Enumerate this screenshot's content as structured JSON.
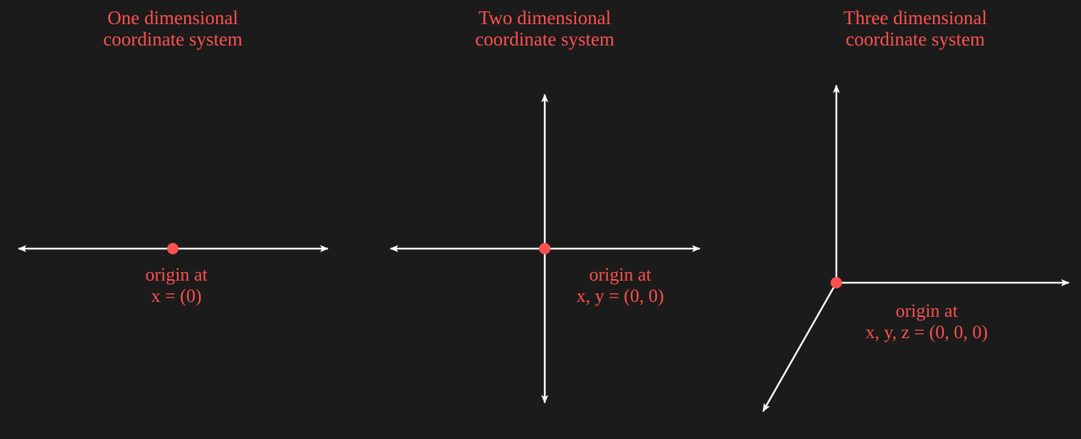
{
  "colors": {
    "background": "#1b1b1b",
    "accent": "#ff5050",
    "axis": "#ffffff"
  },
  "panels": [
    {
      "title_line1": "One dimensional",
      "title_line2": "coordinate system",
      "caption_line1": "origin at",
      "caption_line2": "x = (0)"
    },
    {
      "title_line1": "Two dimensional",
      "title_line2": "coordinate system",
      "caption_line1": "origin at",
      "caption_line2": "x, y = (0, 0)"
    },
    {
      "title_line1": "Three dimensional",
      "title_line2": "coordinate system",
      "caption_line1": "origin at",
      "caption_line2": "x, y, z = (0, 0, 0)"
    }
  ]
}
